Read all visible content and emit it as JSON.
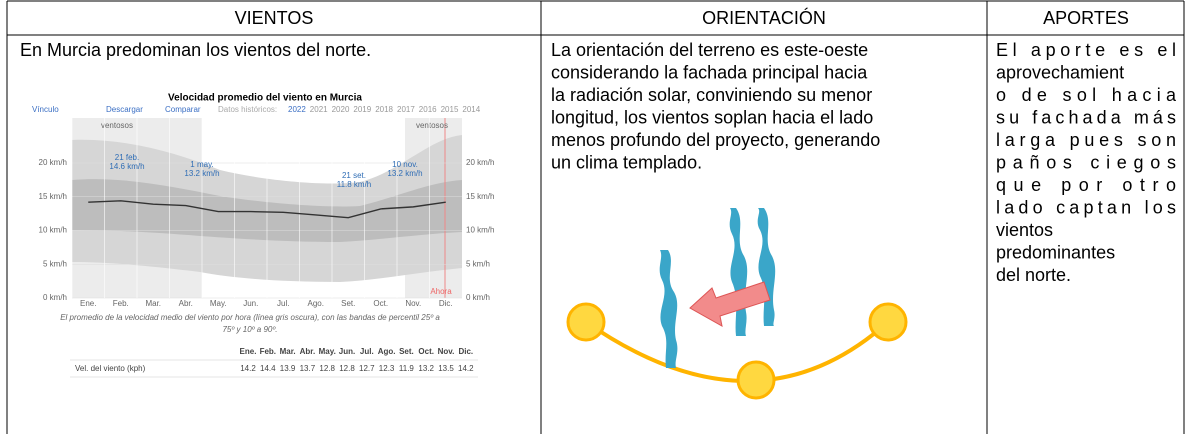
{
  "table": {
    "headers": [
      "VIENTOS",
      "ORIENTACIÓN",
      "APORTES"
    ],
    "vientos_text": "En Murcia predominan los vientos del norte.",
    "orientacion_lines": [
      "La orientación del terreno es este-oeste",
      "considerando la fachada principal hacia",
      "la radiación solar, conviniendo su menor",
      "longitud, los vientos soplan hacia el lado",
      "menos profundo del proyecto, generando",
      "un clima templado."
    ],
    "aportes_lines": [
      "El aporte es el",
      "aprovechamient",
      "o de sol hacia",
      "su fachada más",
      "larga pues son",
      "paños ciegos",
      "que por otro",
      "lado captan los",
      "vientos",
      "predominantes",
      "del norte."
    ]
  },
  "figure": {
    "title": "Velocidad promedio del viento en Murcia",
    "links": [
      "Vínculo",
      "Descargar",
      "Comparar"
    ],
    "historic_label": "Datos históricos:",
    "years": [
      "2022",
      "2021",
      "2020",
      "2019",
      "2018",
      "2017",
      "2016",
      "2015",
      "2014"
    ],
    "windy_labels": [
      "ventosos",
      "ventosos"
    ],
    "now_label": "Ahora",
    "annotations": [
      {
        "date": "21 feb.",
        "value": "14.6 km/h"
      },
      {
        "date": "1 may.",
        "value": "13.2 km/h"
      },
      {
        "date": "21 set.",
        "value": "11.8 km/h"
      },
      {
        "date": "10 nov.",
        "value": "13.2 km/h"
      }
    ],
    "caption": [
      "El promedio de la velocidad medio del viento por hora (línea gris oscura), con las bandas de percentil 25º a",
      "75º y 10º a 90º."
    ],
    "row_label": "Vel. del viento (kph)",
    "chart_data": {
      "type": "line",
      "categories": [
        "Ene.",
        "Feb.",
        "Mar.",
        "Abr.",
        "May.",
        "Jun.",
        "Jul.",
        "Ago.",
        "Set.",
        "Oct.",
        "Nov.",
        "Dic."
      ],
      "values": [
        14.2,
        14.4,
        13.9,
        13.7,
        12.8,
        12.8,
        12.7,
        12.3,
        11.9,
        13.2,
        13.5,
        14.2
      ],
      "color": "#333333",
      "ylim": [
        0,
        24
      ],
      "yticks": [
        {
          "value": 0,
          "label": "0 km/h"
        },
        {
          "value": 5,
          "label": "5 km/h"
        },
        {
          "value": 10,
          "label": "10 km/h"
        },
        {
          "value": 15,
          "label": "15 km/h"
        },
        {
          "value": 20,
          "label": "20 km/h"
        }
      ],
      "grid": true
    }
  }
}
